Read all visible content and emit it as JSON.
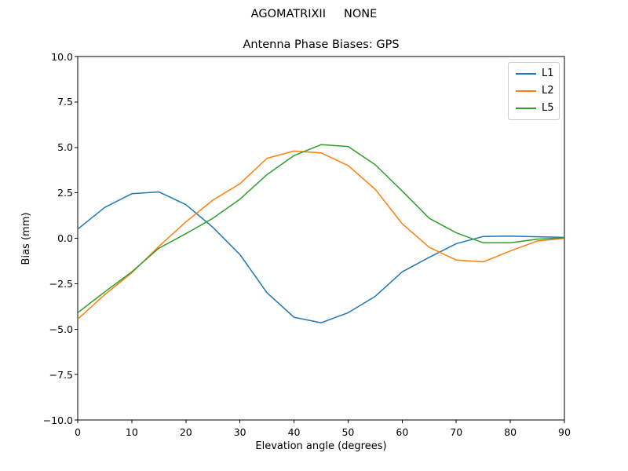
{
  "chart_data": {
    "type": "line",
    "suptitle": "AGOMATRIXII     NONE",
    "title": "Antenna Phase Biases: GPS",
    "xlabel": "Elevation angle (degrees)",
    "ylabel": "Bias (mm)",
    "xlim": [
      0,
      90
    ],
    "ylim": [
      -10,
      10
    ],
    "xticks": [
      0,
      10,
      20,
      30,
      40,
      50,
      60,
      70,
      80,
      90
    ],
    "yticks": [
      10,
      7.5,
      5,
      2.5,
      0,
      -2.5,
      -5,
      -7.5,
      -10
    ],
    "ytick_labels": [
      "10.0",
      "7.5",
      "5.0",
      "2.5",
      "0.0",
      "−2.5",
      "−5.0",
      "−7.5",
      "−10.0"
    ],
    "grid": false,
    "legend_position": "upper right",
    "x": [
      0,
      5,
      10,
      15,
      20,
      25,
      30,
      35,
      40,
      45,
      50,
      55,
      60,
      65,
      70,
      75,
      80,
      85,
      90
    ],
    "series": [
      {
        "name": "L1",
        "color": "#1f77b4",
        "values": [
          0.5,
          1.7,
          2.45,
          2.55,
          1.85,
          0.6,
          -0.9,
          -3.0,
          -4.35,
          -4.65,
          -4.1,
          -3.2,
          -1.85,
          -1.05,
          -0.3,
          0.1,
          0.12,
          0.08,
          0.05
        ]
      },
      {
        "name": "L2",
        "color": "#ff7f0e",
        "values": [
          -4.45,
          -3.1,
          -1.9,
          -0.45,
          0.9,
          2.1,
          3.0,
          4.4,
          4.8,
          4.7,
          4.0,
          2.7,
          0.8,
          -0.5,
          -1.2,
          -1.3,
          -0.7,
          -0.15,
          0.0
        ]
      },
      {
        "name": "L5",
        "color": "#2ca02c",
        "values": [
          -4.1,
          -2.95,
          -1.85,
          -0.55,
          0.25,
          1.1,
          2.15,
          3.5,
          4.55,
          5.15,
          5.05,
          4.05,
          2.6,
          1.1,
          0.3,
          -0.25,
          -0.25,
          -0.05,
          0.02
        ]
      }
    ]
  }
}
